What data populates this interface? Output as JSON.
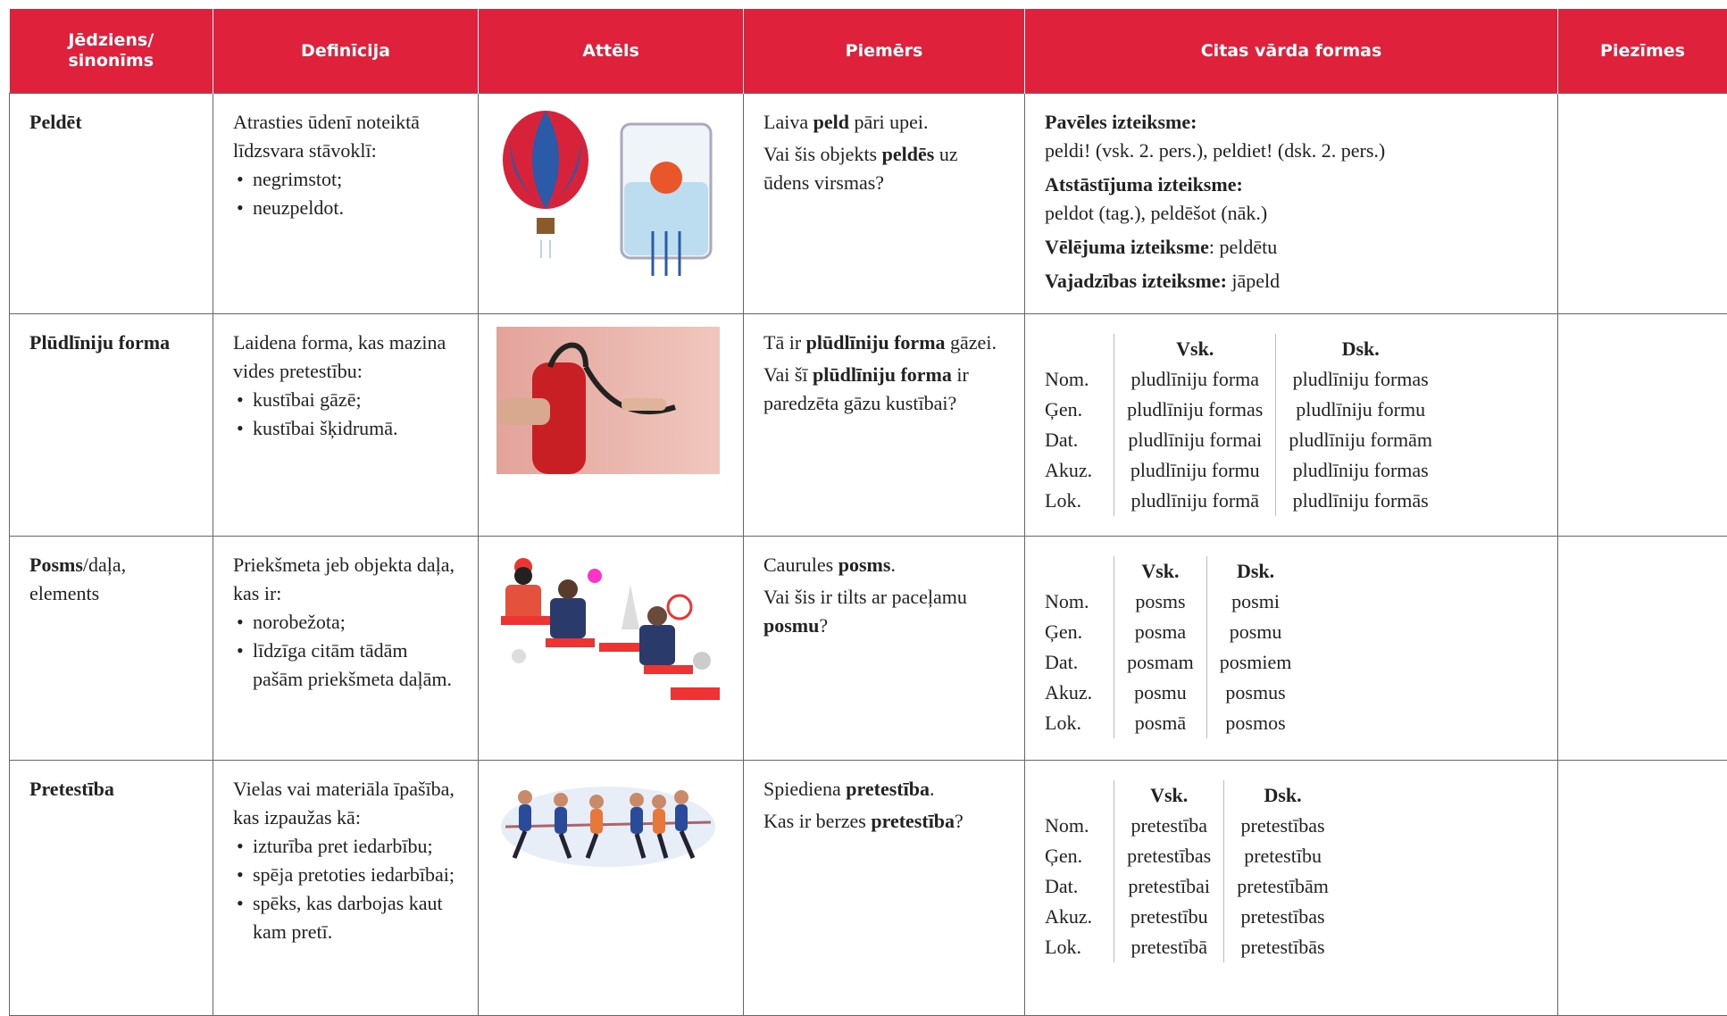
{
  "header": [
    "Jēdziens/ sinonīms",
    "Definīcija",
    "Attēls",
    "Piemērs",
    "Citas vārda formas",
    "Piezīmes"
  ],
  "rows": [
    {
      "term": [
        {
          "t": "Peldēt",
          "b": true
        }
      ],
      "definition": {
        "intro": "Atrasties ūdenī noteiktā līdzsvara stāvoklī:",
        "items": [
          "negrimstot;",
          "neuzpeldot."
        ]
      },
      "example": [
        [
          "Laiva ",
          {
            "t": "peld",
            "b": true
          },
          " pāri upei."
        ],
        [
          "Vai šis objekts ",
          {
            "t": "peldēs",
            "b": true
          },
          " uz ūdens virsmas?"
        ]
      ],
      "forms": {
        "lines": [
          [
            {
              "t": "Pavēles izteiksme:",
              "b": true
            }
          ],
          [
            "peldi! (vsk. 2. pers.), peldiet! (dsk. 2. pers.)"
          ],
          [
            {
              "t": "Atstāstījuma izteiksme:",
              "b": true
            }
          ],
          [
            "peldot (tag.), peldēšot (nāk.)"
          ],
          [
            {
              "t": "Vēlējuma izteiksme",
              "b": true
            },
            ": peldētu"
          ],
          [
            {
              "t": "Vajadzības izteiksme:",
              "b": true
            },
            " jāpeld"
          ]
        ]
      }
    },
    {
      "term": [
        {
          "t": "Plūdlīniju forma",
          "b": true
        }
      ],
      "definition": {
        "intro": "Laidena forma, kas mazina vides pretestību:",
        "items": [
          "kustībai gāzē;",
          "kustībai šķidrumā."
        ]
      },
      "example": [
        [
          "Tā ir ",
          {
            "t": "plūdlīniju forma",
            "b": true
          },
          " gāzei."
        ],
        [
          "Vai šī ",
          {
            "t": "plūdlīniju forma",
            "b": true
          },
          " ir paredzēta gāzu kustībai?"
        ]
      ],
      "forms": {
        "table": {
          "headers": [
            "Vsk.",
            "Dsk."
          ],
          "cases": [
            "Nom.",
            "Ģen.",
            "Dat.",
            "Akuz.",
            "Lok."
          ],
          "sg": [
            "pludlīniju forma",
            "pludlīniju formas",
            "pludlīniju formai",
            "pludlīniju formu",
            "pludlīniju formā"
          ],
          "pl": [
            "pludlīniju formas",
            "pludlīniju formu",
            "pludlīniju formām",
            "pludlīniju formas",
            "pludlīniju formās"
          ]
        }
      }
    },
    {
      "term": [
        {
          "t": "Posms",
          "b": true
        },
        "/daļa, elements"
      ],
      "definition": {
        "intro": "Priekšmeta jeb objekta daļa, kas ir:",
        "items": [
          "norobežota;",
          "līdzīga citām tādām pašām priekšmeta daļām."
        ]
      },
      "example": [
        [
          "Caurules ",
          {
            "t": "posms",
            "b": true
          },
          "."
        ],
        [
          "Vai šis ir tilts ar paceļamu ",
          {
            "t": "posmu",
            "b": true
          },
          "?"
        ]
      ],
      "forms": {
        "table": {
          "headers": [
            "Vsk.",
            "Dsk."
          ],
          "cases": [
            "Nom.",
            "Ģen.",
            "Dat.",
            "Akuz.",
            "Lok."
          ],
          "sg": [
            "posms",
            "posma",
            "posmam",
            "posmu",
            "posmā"
          ],
          "pl": [
            "posmi",
            "posmu",
            "posmiem",
            "posmus",
            "posmos"
          ]
        }
      }
    },
    {
      "term": [
        {
          "t": "Pretestība",
          "b": true
        }
      ],
      "definition": {
        "intro": "Vielas vai materiāla īpašība, kas izpaužas kā:",
        "items": [
          "izturība pret iedarbību;",
          "spēja pretoties iedarbībai;",
          "spēks, kas darbojas kaut kam pretī."
        ]
      },
      "example": [
        [
          "Spiediena ",
          {
            "t": "pretestība",
            "b": true
          },
          "."
        ],
        [
          "Kas ir berzes ",
          {
            "t": "pretestība",
            "b": true
          },
          "?"
        ]
      ],
      "forms": {
        "table": {
          "headers": [
            "Vsk.",
            "Dsk."
          ],
          "cases": [
            "Nom.",
            "Ģen.",
            "Dat.",
            "Akuz.",
            "Lok."
          ],
          "sg": [
            "pretestība",
            "pretestības",
            "pretestībai",
            "pretestību",
            "pretestībā"
          ],
          "pl": [
            "pretestības",
            "pretestību",
            "pretestībām",
            "pretestības",
            "pretestībās"
          ]
        }
      }
    }
  ]
}
